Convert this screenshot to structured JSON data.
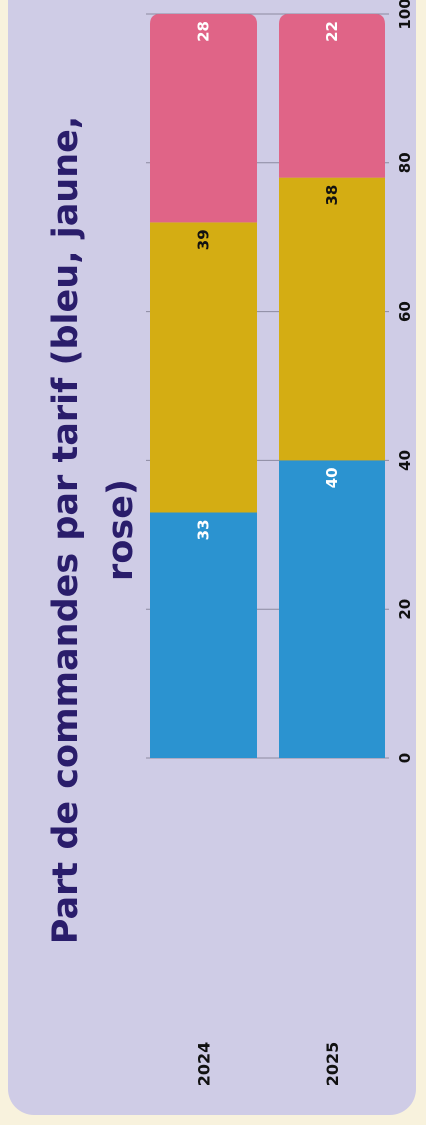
{
  "chart_data": {
    "type": "bar",
    "orientation": "horizontal",
    "stacked": true,
    "title_lines": [
      "Part de commandes par tarif (bleu, jaune,",
      "rose)"
    ],
    "categories": [
      "2024",
      "2025"
    ],
    "series": [
      {
        "color": "#2b93d0",
        "label_color": "#ffffff",
        "values": [
          33,
          40
        ]
      },
      {
        "color": "#d4ad13",
        "label_color": "#111111",
        "values": [
          39,
          38
        ]
      },
      {
        "color": "#e06487",
        "label_color": "#ffffff",
        "values": [
          28,
          22
        ]
      }
    ],
    "xlim": [
      0,
      100
    ],
    "xticks": [
      "0",
      "20",
      "40",
      "60",
      "80",
      "100"
    ],
    "grid": true
  }
}
